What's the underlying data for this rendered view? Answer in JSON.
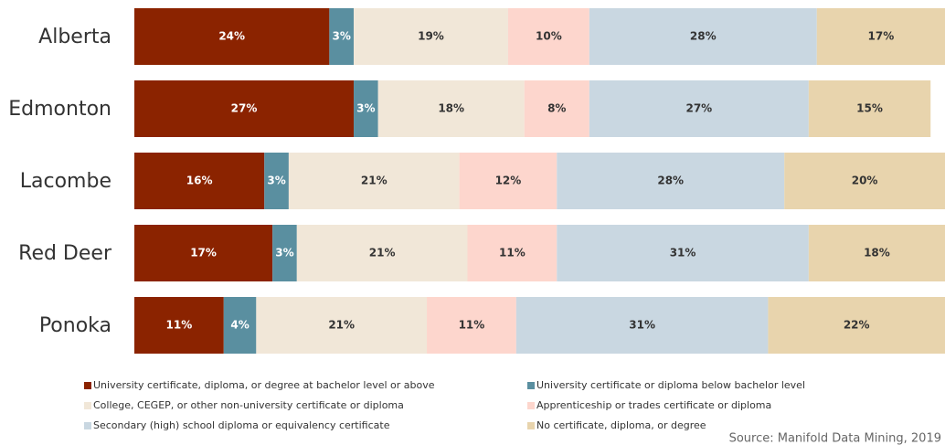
{
  "chart_data": {
    "type": "stacked-bar-horizontal",
    "categories": [
      "Alberta",
      "Edmonton",
      "Lacombe",
      "Red Deer",
      "Ponoka"
    ],
    "xlim": [
      0,
      100
    ],
    "series": [
      {
        "name": "University certificate, diploma, or degree at bachelor level or above",
        "color": "#8b2300",
        "label_color": "#ffffff",
        "values": [
          24,
          27,
          16,
          17,
          11
        ],
        "value_labels": [
          "24%",
          "27%",
          "16%",
          "17%",
          "11%"
        ]
      },
      {
        "name": "University certificate or diploma below bachelor level",
        "color": "#5a8fa0",
        "label_color": "#ffffff",
        "values": [
          3,
          3,
          3,
          3,
          4
        ],
        "value_labels": [
          "3%",
          "3%",
          "3%",
          "3%",
          "4%"
        ]
      },
      {
        "name": "College, CEGEP, or other non-university certificate or diploma",
        "color": "#f1e7d8",
        "label_color": "#333333",
        "values": [
          19,
          18,
          21,
          21,
          21
        ],
        "value_labels": [
          "19%",
          "18%",
          "21%",
          "21%",
          "21%"
        ]
      },
      {
        "name": "Apprenticeship or trades certificate or diploma",
        "color": "#fdd6cd",
        "label_color": "#333333",
        "values": [
          10,
          8,
          12,
          11,
          11
        ],
        "value_labels": [
          "10%",
          "8%",
          "12%",
          "11%",
          "11%"
        ]
      },
      {
        "name": "Secondary (high) school diploma or equivalency certificate",
        "color": "#c9d7e1",
        "label_color": "#333333",
        "values": [
          28,
          27,
          28,
          31,
          31
        ],
        "value_labels": [
          "28%",
          "27%",
          "28%",
          "31%",
          "31%"
        ]
      },
      {
        "name": "No certificate, diploma, or degree",
        "color": "#e8d4ad",
        "label_color": "#333333",
        "values": [
          17,
          15,
          20,
          18,
          22
        ],
        "value_labels": [
          "17%",
          "15%",
          "20%",
          "18%",
          "22%"
        ]
      }
    ],
    "source": "Source: Manifold Data Mining, 2019"
  }
}
